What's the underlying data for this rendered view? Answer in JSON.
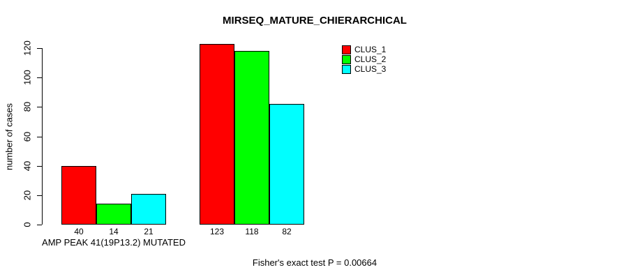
{
  "chart_data": {
    "type": "bar",
    "title": "MIRSEQ_MATURE_CHIERARCHICAL",
    "ylabel": "number of cases",
    "xlabel": "",
    "ylim": [
      0,
      120
    ],
    "yticks": [
      0,
      20,
      40,
      60,
      80,
      100,
      120
    ],
    "grid": false,
    "background": "#FFFFFF",
    "bar_border_color": "#000000",
    "legend_position": "inside-top-center-right",
    "categories": [
      "AMP PEAK 41(19P13.2) MUTATED",
      ""
    ],
    "series": [
      {
        "name": "CLUS_1",
        "color": "#FF0000",
        "values": [
          40,
          123
        ]
      },
      {
        "name": "CLUS_2",
        "color": "#00FF00",
        "values": [
          14,
          118
        ]
      },
      {
        "name": "CLUS_3",
        "color": "#00FFFF",
        "values": [
          21,
          82
        ]
      }
    ],
    "annotation": "Fisher's exact test P = 0.00664"
  }
}
